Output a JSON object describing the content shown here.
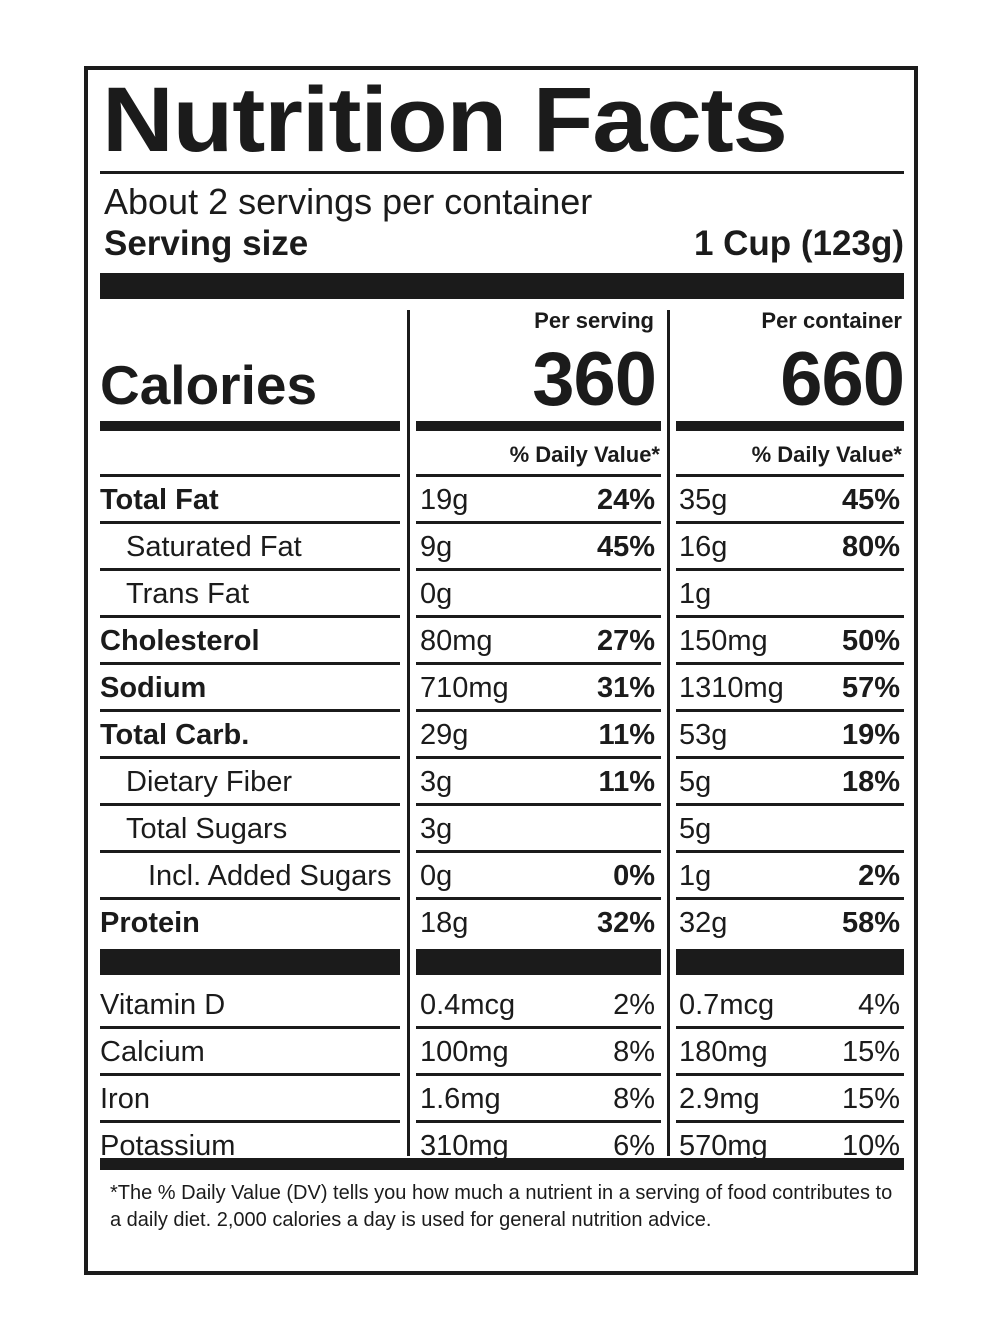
{
  "title": "Nutrition Facts",
  "servings_per_container": "About 2 servings per container",
  "serving_size": {
    "label": "Serving size",
    "value": "1 Cup (123g)"
  },
  "calories": {
    "label": "Calories",
    "per_serving_header": "Per serving",
    "per_container_header": "Per container",
    "per_serving": "360",
    "per_container": "660"
  },
  "daily_value_header": "% Daily Value*",
  "nutrients": [
    {
      "name": "Total Fat",
      "bold": true,
      "indent": 0,
      "serving_amount": "19g",
      "serving_dv": "24%",
      "container_amount": "35g",
      "container_dv": "45%"
    },
    {
      "name": "Saturated Fat",
      "bold": false,
      "indent": 1,
      "serving_amount": "9g",
      "serving_dv": "45%",
      "container_amount": "16g",
      "container_dv": "80%"
    },
    {
      "name": "Trans Fat",
      "bold": false,
      "indent": 1,
      "serving_amount": "0g",
      "serving_dv": "",
      "container_amount": "1g",
      "container_dv": ""
    },
    {
      "name": "Cholesterol",
      "bold": true,
      "indent": 0,
      "serving_amount": "80mg",
      "serving_dv": "27%",
      "container_amount": "150mg",
      "container_dv": "50%"
    },
    {
      "name": "Sodium",
      "bold": true,
      "indent": 0,
      "serving_amount": "710mg",
      "serving_dv": "31%",
      "container_amount": "1310mg",
      "container_dv": "57%"
    },
    {
      "name": "Total Carb.",
      "bold": true,
      "indent": 0,
      "serving_amount": "29g",
      "serving_dv": "11%",
      "container_amount": "53g",
      "container_dv": "19%"
    },
    {
      "name": "Dietary Fiber",
      "bold": false,
      "indent": 1,
      "serving_amount": "3g",
      "serving_dv": "11%",
      "container_amount": "5g",
      "container_dv": "18%"
    },
    {
      "name": "Total Sugars",
      "bold": false,
      "indent": 1,
      "serving_amount": "3g",
      "serving_dv": "",
      "container_amount": "5g",
      "container_dv": ""
    },
    {
      "name": "Incl. Added Sugars",
      "bold": false,
      "indent": 2,
      "serving_amount": "0g",
      "serving_dv": "0%",
      "container_amount": "1g",
      "container_dv": "2%"
    },
    {
      "name": "Protein",
      "bold": true,
      "indent": 0,
      "serving_amount": "18g",
      "serving_dv": "32%",
      "container_amount": "32g",
      "container_dv": "58%"
    }
  ],
  "vitamins": [
    {
      "name": "Vitamin D",
      "serving_amount": "0.4mcg",
      "serving_dv": "2%",
      "container_amount": "0.7mcg",
      "container_dv": "4%"
    },
    {
      "name": "Calcium",
      "serving_amount": "100mg",
      "serving_dv": "8%",
      "container_amount": "180mg",
      "container_dv": "15%"
    },
    {
      "name": "Iron",
      "serving_amount": "1.6mg",
      "serving_dv": "8%",
      "container_amount": "2.9mg",
      "container_dv": "15%"
    },
    {
      "name": "Potassium",
      "serving_amount": "310mg",
      "serving_dv": "6%",
      "container_amount": "570mg",
      "container_dv": "10%"
    }
  ],
  "footnote": "*The % Daily Value (DV) tells you how much a nutrient in a serving of food contributes to a daily diet. 2,000 calories a day is used for general nutrition advice."
}
